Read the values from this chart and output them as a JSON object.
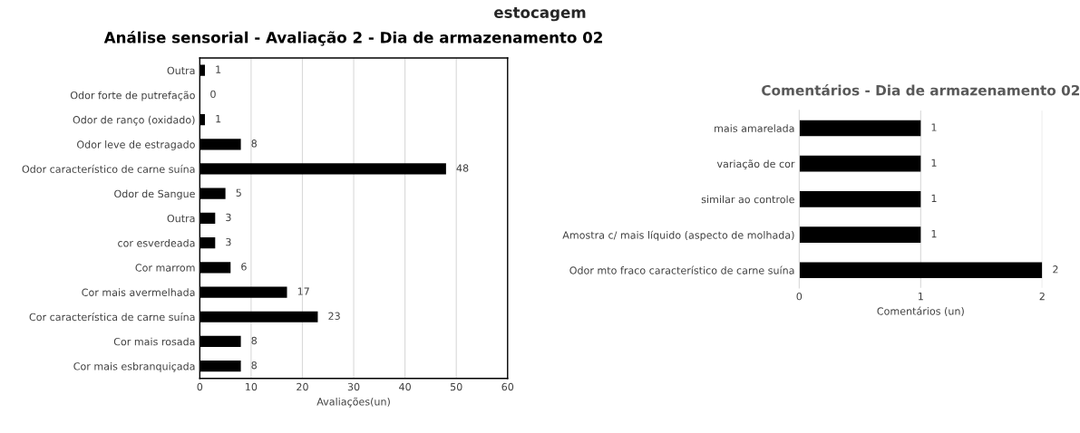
{
  "chart_data": [
    {
      "type": "bar",
      "orientation": "horizontal",
      "title": "Análise sensorial - Avaliação 2 - Dia de armazenamento 02",
      "xlabel": "Avaliações(un)",
      "annotations": [
        "estocagem"
      ],
      "categories": [
        "Outra",
        "Odor forte de putrefação",
        "Odor de ranço (oxidado)",
        "Odor leve de estragado",
        "Odor característico de carne suína",
        "Odor de Sangue",
        "Outra",
        "cor esverdeada",
        "Cor marrom",
        "Cor mais avermelhada",
        "Cor característica de carne suína",
        "Cor mais rosada",
        "Cor mais esbranquiçada"
      ],
      "values": [
        1,
        0,
        1,
        8,
        48,
        5,
        3,
        3,
        6,
        17,
        23,
        8,
        8
      ],
      "color": "#000000",
      "xlim": [
        0,
        60
      ],
      "xticks": [
        0,
        10,
        20,
        30,
        40,
        50,
        60
      ],
      "grid": "x",
      "data_labels": true
    },
    {
      "type": "bar",
      "orientation": "horizontal",
      "title": "Comentários - Dia de armazenamento 02",
      "xlabel": "Comentários (un)",
      "categories": [
        "mais amarelada",
        "variação de cor",
        "similar ao controle",
        "Amostra c/ mais líquido (aspecto de molhada)",
        "Odor mto fraco característico de carne suína"
      ],
      "values": [
        1,
        1,
        1,
        1,
        2
      ],
      "color": "#000000",
      "xlim": [
        0,
        2
      ],
      "xticks": [
        0,
        1,
        2
      ],
      "grid": "x",
      "data_labels": true
    }
  ]
}
